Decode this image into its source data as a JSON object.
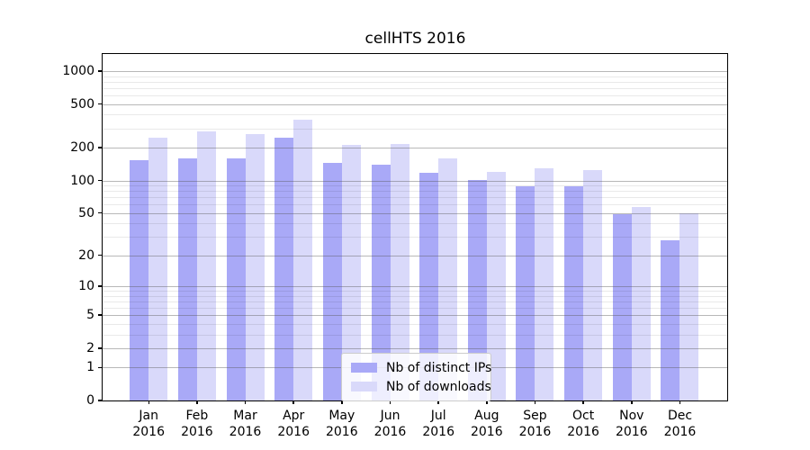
{
  "title": "cellHTS 2016",
  "chart_data": {
    "type": "bar",
    "title": "cellHTS 2016",
    "categories": [
      "Jan",
      "Feb",
      "Mar",
      "Apr",
      "May",
      "Jun",
      "Jul",
      "Aug",
      "Sep",
      "Oct",
      "Nov",
      "Dec"
    ],
    "year_label": "2016",
    "series": [
      {
        "name": "Nb of distinct IPs",
        "color": "#a9a9f7",
        "values": [
          154,
          158,
          160,
          245,
          145,
          140,
          117,
          100,
          88,
          88,
          49,
          28
        ]
      },
      {
        "name": "Nb of downloads",
        "color": "#d9d9fa",
        "values": [
          246,
          280,
          264,
          358,
          212,
          214,
          160,
          120,
          129,
          124,
          57,
          50
        ]
      }
    ],
    "xlabel": "",
    "ylabel": "",
    "y_scale": "log1p",
    "ylim": [
      0,
      1450
    ],
    "y_ticks": [
      0,
      1,
      2,
      5,
      10,
      20,
      50,
      100,
      200,
      500,
      1000
    ],
    "y_minor_gridlines": [
      3,
      4,
      6,
      7,
      8,
      9,
      30,
      40,
      60,
      70,
      80,
      90,
      300,
      400,
      600,
      700,
      800,
      900
    ],
    "grid": true,
    "legend_position": "lower-center"
  },
  "colors": {
    "bar_distinct_ips": "#a9a9f7",
    "bar_downloads": "#d9d9fa",
    "grid_major": "#b3b3b3",
    "grid_minor": "#e8e8e8",
    "axis": "#000000",
    "background": "#ffffff"
  }
}
